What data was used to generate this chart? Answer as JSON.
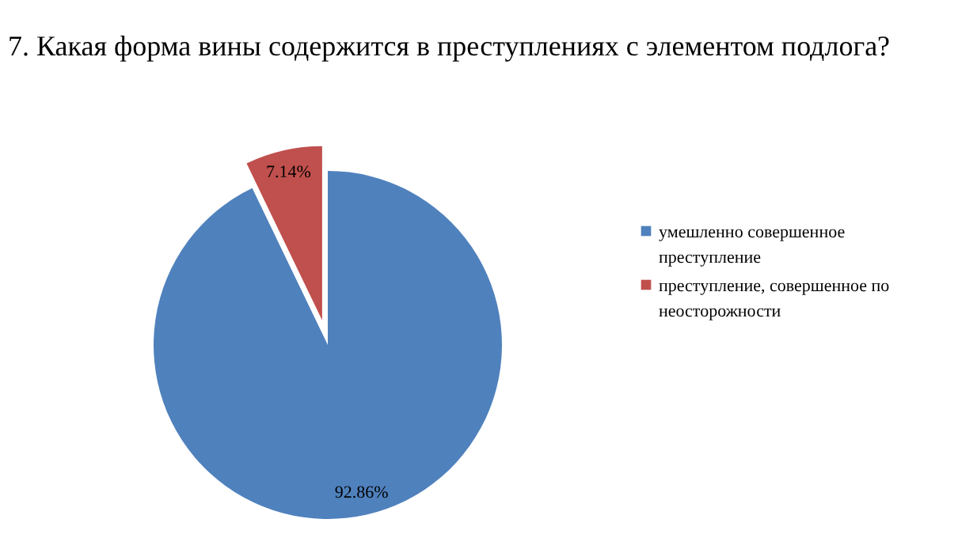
{
  "chart_data": {
    "type": "pie",
    "title": "7. Какая форма вины содержится в преступлениях с элементом подлога?",
    "categories": [
      "умешленно совершенное преступление",
      "преступление, совершенное по неосторожности"
    ],
    "values": [
      92.86,
      7.14
    ],
    "value_labels": [
      "92.86%",
      "7.14%"
    ],
    "colors": [
      "#4f81bd",
      "#c0504d"
    ],
    "legend": "right"
  }
}
